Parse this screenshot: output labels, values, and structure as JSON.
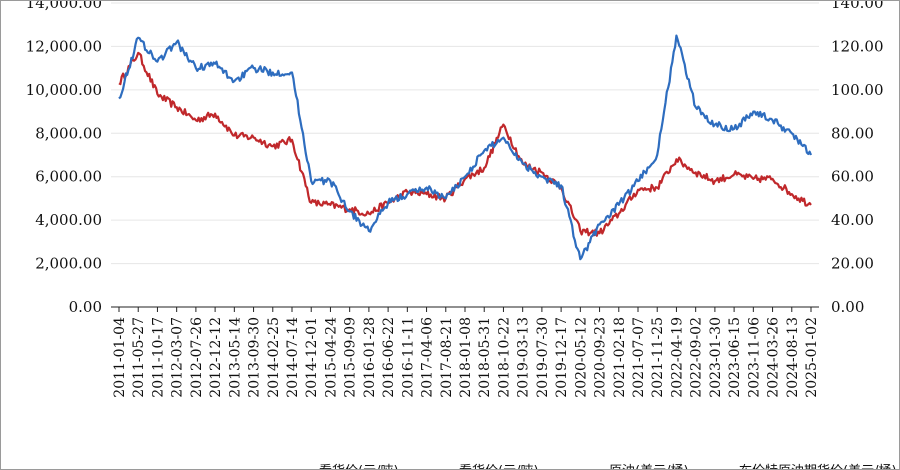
{
  "chart_data": {
    "type": "line",
    "title": "",
    "xlabel": "",
    "ylabel": "",
    "grid": true,
    "legend_placement": "bottom",
    "x": [
      "2011-01-04",
      "2011-05-27",
      "2011-10-17",
      "2012-03-07",
      "2012-07-26",
      "2012-12-12",
      "2013-05-14",
      "2013-09-30",
      "2014-02-25",
      "2014-07-14",
      "2014-12-01",
      "2015-04-24",
      "2015-09-09",
      "2016-01-28",
      "2016-06-22",
      "2016-11-11",
      "2017-04-06",
      "2017-08-21",
      "2018-01-08",
      "2018-05-31",
      "2018-10-22",
      "2019-03-13",
      "2019-07-30",
      "2019-12-17",
      "2020-05-12",
      "2020-09-23",
      "2021-02-18",
      "2021-07-07",
      "2021-11-25",
      "2022-04-19",
      "2022-09-02",
      "2023-01-30",
      "2023-06-15",
      "2023-11-06",
      "2024-03-26",
      "2024-08-13",
      "2025-01-02"
    ],
    "y_left": {
      "ylim": [
        0,
        14000
      ],
      "ticks": [
        "0.00",
        "2,000.00",
        "4,000.00",
        "6,000.00",
        "8,000.00",
        "10,000.00",
        "12,000.00",
        "14,000.00"
      ]
    },
    "y_right": {
      "ylim": [
        0,
        140
      ],
      "ticks": [
        "0.00",
        "20.00",
        "40.00",
        "60.00",
        "80.00",
        "100.00",
        "120.00",
        "140.00"
      ]
    },
    "series": [
      {
        "axis": "left",
        "color": "#c0282b",
        "values": [
          10300,
          11700,
          9800,
          9200,
          8600,
          8900,
          7900,
          7800,
          7400,
          7700,
          4800,
          4700,
          4500,
          4300,
          4800,
          5300,
          5200,
          5000,
          5900,
          6400,
          8400,
          6600,
          6200,
          5500,
          3500,
          3400,
          4300,
          5400,
          5500,
          6800,
          6200,
          5800,
          6100,
          5900,
          5900,
          5200,
          4700
        ]
      },
      {
        "axis": "right",
        "color": "#2e6dbf",
        "values": [
          96,
          124,
          113,
          122,
          110,
          112,
          104,
          110,
          108,
          108,
          58,
          58,
          44,
          35,
          48,
          52,
          55,
          50,
          60,
          72,
          78,
          66,
          60,
          56,
          22,
          38,
          47,
          58,
          70,
          125,
          92,
          84,
          82,
          90,
          86,
          80,
          70
        ]
      }
    ],
    "legend": [
      "看货价(元/吨)",
      "看货价(元/吨)",
      "原油(美元/桶)",
      "布伦特原油期货价(美元/桶)"
    ]
  }
}
